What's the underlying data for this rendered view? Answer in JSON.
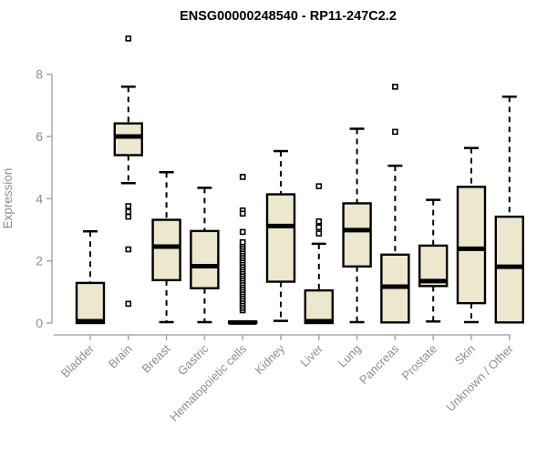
{
  "chart_data": {
    "type": "boxplot",
    "title": "ENSG00000248540 - RP11-247C2.2",
    "ylabel": "Expression",
    "xlabel": "",
    "ylim": [
      0,
      9.4
    ],
    "yticks": [
      0,
      2,
      4,
      6,
      8
    ],
    "grid": false,
    "legend": "none",
    "categories": [
      "Bladder",
      "Brain",
      "Breast",
      "Gastric",
      "Hematopoietic cells",
      "Kidney",
      "Liver",
      "Lung",
      "Pancreas",
      "Prostate",
      "Skin",
      "Unknown / Other"
    ],
    "boxes": [
      {
        "low": 0,
        "q1": 0,
        "med": 0.06,
        "q3": 1.29,
        "high": 2.95,
        "outliers": []
      },
      {
        "low": 4.5,
        "q1": 5.4,
        "med": 6.0,
        "q3": 6.42,
        "high": 7.6,
        "outliers": [
          9.15,
          3.76,
          3.58,
          3.42,
          2.37,
          0.62
        ]
      },
      {
        "low": 0.03,
        "q1": 1.38,
        "med": 2.46,
        "q3": 3.32,
        "high": 4.85,
        "outliers": []
      },
      {
        "low": 0.03,
        "q1": 1.12,
        "med": 1.83,
        "q3": 2.96,
        "high": 4.35,
        "outliers": []
      },
      {
        "low": 0,
        "q1": 0,
        "med": 0.02,
        "q3": 0.05,
        "high": 0.05,
        "outliers": [
          4.7,
          3.62,
          3.52,
          2.93
        ],
        "outlier_band": [
          0.41,
          2.62
        ]
      },
      {
        "low": 0.07,
        "q1": 1.33,
        "med": 3.12,
        "q3": 4.14,
        "high": 5.53,
        "outliers": []
      },
      {
        "low": 0,
        "q1": 0,
        "med": 0.06,
        "q3": 1.05,
        "high": 2.55,
        "outliers": [
          4.4,
          3.27,
          3.08,
          2.88
        ]
      },
      {
        "low": 0.03,
        "q1": 1.82,
        "med": 2.99,
        "q3": 3.85,
        "high": 6.25,
        "outliers": []
      },
      {
        "low": 0.02,
        "q1": 0.02,
        "med": 1.17,
        "q3": 2.2,
        "high": 5.06,
        "outliers": [
          7.6,
          6.15
        ]
      },
      {
        "low": 0.05,
        "q1": 1.19,
        "med": 1.35,
        "q3": 2.49,
        "high": 3.96,
        "outliers": []
      },
      {
        "low": 0.03,
        "q1": 0.64,
        "med": 2.39,
        "q3": 4.38,
        "high": 5.63,
        "outliers": []
      },
      {
        "low": 0.02,
        "q1": 0.02,
        "med": 1.81,
        "q3": 3.42,
        "high": 7.28,
        "outliers": []
      }
    ],
    "colors": {
      "box_fill": "#EDE7CE",
      "box_border": "#000000",
      "median": "#000000",
      "whisker": "#000000",
      "axis_line": "#A9A9A9",
      "tick_label": "#8E8E8E",
      "axis_label": "#8E8E8E",
      "title": "#000000",
      "background": "#FFFFFF"
    }
  }
}
